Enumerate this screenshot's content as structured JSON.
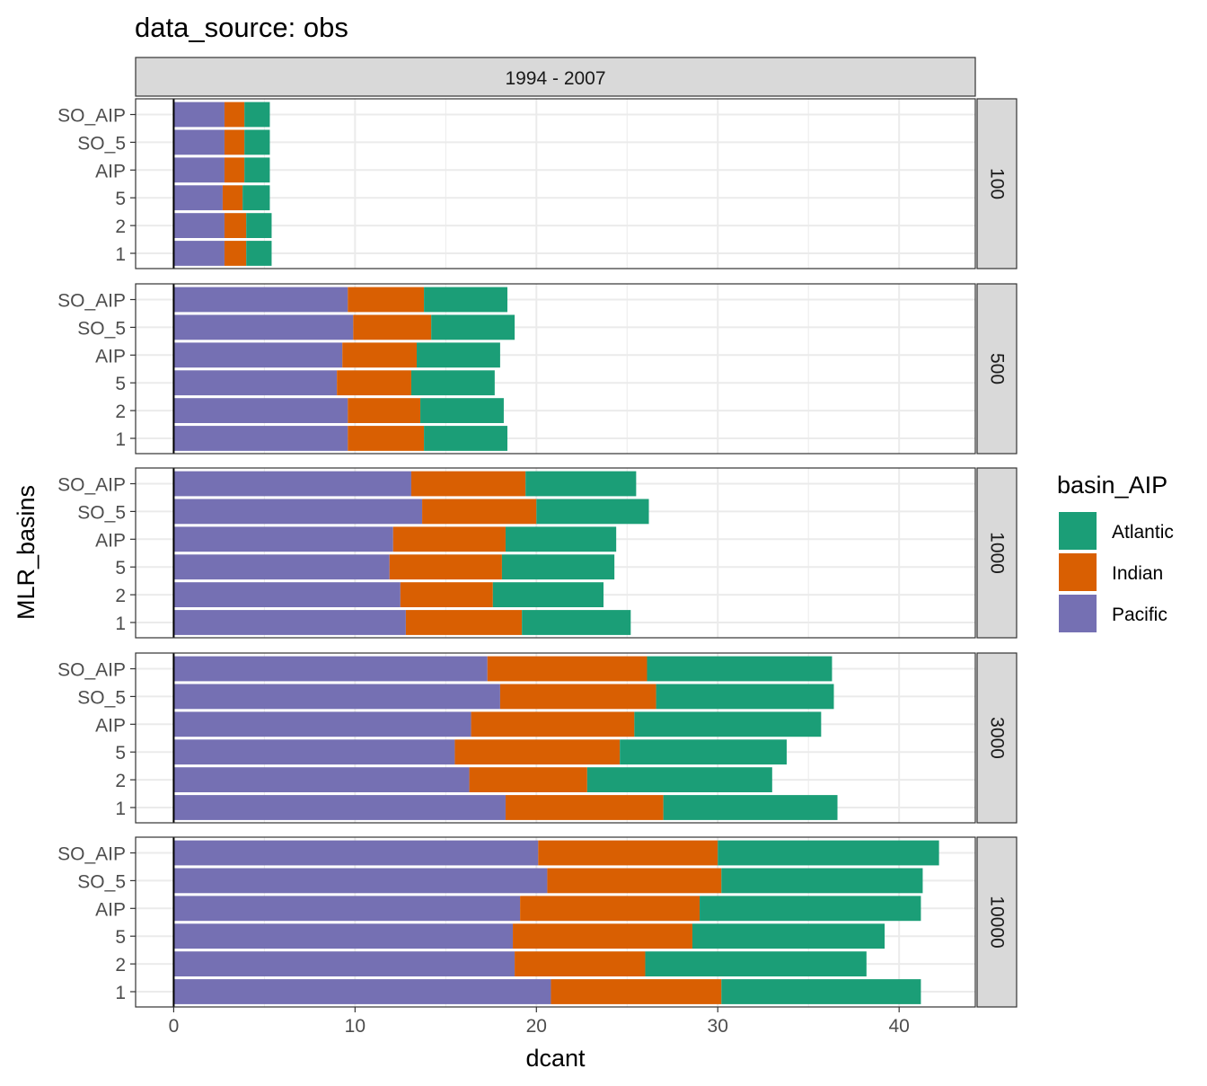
{
  "chart_data": {
    "type": "bar",
    "orientation": "horizontal",
    "stacked": true,
    "title": "data_source: obs",
    "xlabel": "dcant",
    "ylabel": "MLR_basins",
    "xlim": [
      -2.1,
      44.2
    ],
    "xticks": [
      0,
      10,
      20,
      30,
      40
    ],
    "grid": true,
    "column_facet": "1994 - 2007",
    "categories": [
      "SO_AIP",
      "SO_5",
      "AIP",
      "5",
      "2",
      "1"
    ],
    "legend": {
      "title": "basin_AIP",
      "position": "right",
      "entries": [
        "Atlantic",
        "Indian",
        "Pacific"
      ]
    },
    "colors": {
      "Pacific": "#7570b3",
      "Indian": "#d95f02",
      "Atlantic": "#1b9e77"
    },
    "stack_order": [
      "Pacific",
      "Indian",
      "Atlantic"
    ],
    "panels": [
      {
        "label": "100",
        "series": [
          {
            "name": "Pacific",
            "values": [
              2.8,
              2.8,
              2.8,
              2.7,
              2.8,
              2.8
            ]
          },
          {
            "name": "Indian",
            "values": [
              1.1,
              1.1,
              1.1,
              1.1,
              1.2,
              1.2
            ]
          },
          {
            "name": "Atlantic",
            "values": [
              1.4,
              1.4,
              1.4,
              1.5,
              1.4,
              1.4
            ]
          }
        ]
      },
      {
        "label": "500",
        "series": [
          {
            "name": "Pacific",
            "values": [
              9.6,
              9.9,
              9.3,
              9.0,
              9.6,
              9.6
            ]
          },
          {
            "name": "Indian",
            "values": [
              4.2,
              4.3,
              4.1,
              4.1,
              4.0,
              4.2
            ]
          },
          {
            "name": "Atlantic",
            "values": [
              4.6,
              4.6,
              4.6,
              4.6,
              4.6,
              4.6
            ]
          }
        ]
      },
      {
        "label": "1000",
        "series": [
          {
            "name": "Pacific",
            "values": [
              13.1,
              13.7,
              12.1,
              11.9,
              12.5,
              12.8
            ]
          },
          {
            "name": "Indian",
            "values": [
              6.3,
              6.3,
              6.2,
              6.2,
              5.1,
              6.4
            ]
          },
          {
            "name": "Atlantic",
            "values": [
              6.1,
              6.2,
              6.1,
              6.2,
              6.1,
              6.0
            ]
          }
        ]
      },
      {
        "label": "3000",
        "series": [
          {
            "name": "Pacific",
            "values": [
              17.3,
              18.0,
              16.4,
              15.5,
              16.3,
              18.3
            ]
          },
          {
            "name": "Indian",
            "values": [
              8.8,
              8.6,
              9.0,
              9.1,
              6.5,
              8.7
            ]
          },
          {
            "name": "Atlantic",
            "values": [
              10.2,
              9.8,
              10.3,
              9.2,
              10.2,
              9.6
            ]
          }
        ]
      },
      {
        "label": "10000",
        "series": [
          {
            "name": "Pacific",
            "values": [
              20.1,
              20.6,
              19.1,
              18.7,
              18.8,
              20.8
            ]
          },
          {
            "name": "Indian",
            "values": [
              9.9,
              9.6,
              9.9,
              9.9,
              7.2,
              9.4
            ]
          },
          {
            "name": "Atlantic",
            "values": [
              12.2,
              11.1,
              12.2,
              10.6,
              12.2,
              11.0
            ]
          }
        ]
      }
    ]
  }
}
